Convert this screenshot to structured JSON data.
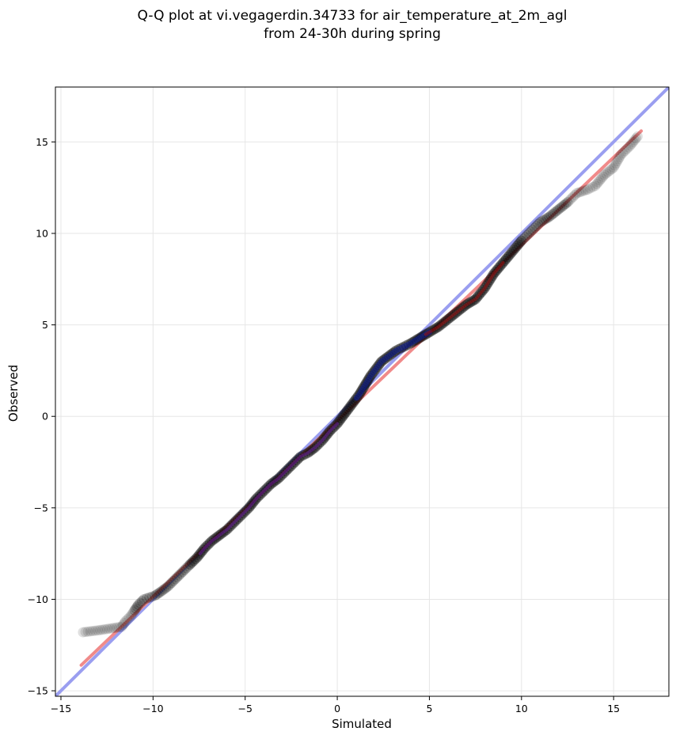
{
  "chart_data": {
    "type": "scatter",
    "title_lines": [
      "Q-Q plot at vi.vegagerdin.34733 for air_temperature_at_2m_agl",
      "from 24-30h during spring"
    ],
    "xlabel": "Simulated",
    "ylabel": "Observed",
    "xlim": [
      -15.3,
      18.0
    ],
    "ylim": [
      -15.3,
      18.0
    ],
    "xticks": [
      -15,
      -10,
      -5,
      0,
      5,
      10,
      15
    ],
    "yticks": [
      -15,
      -10,
      -5,
      0,
      5,
      10,
      15
    ],
    "tick_labels": {
      "x": [
        "−15",
        "−10",
        "−5",
        "0",
        "5",
        "10",
        "15"
      ],
      "y": [
        "−15",
        "−10",
        "−5",
        "0",
        "5",
        "10",
        "15"
      ]
    },
    "grid": true,
    "reference_line": {
      "from": [
        -15.3,
        -15.3
      ],
      "to": [
        18.0,
        18.0
      ],
      "color": "#9a9ef0"
    },
    "fit_line": {
      "from": [
        -13.9,
        -13.6
      ],
      "to": [
        16.5,
        15.6
      ],
      "color": "#f08a8a"
    },
    "quantile_points": [
      [
        -13.8,
        -11.8
      ],
      [
        -13.0,
        -11.7
      ],
      [
        -11.7,
        -11.5
      ],
      [
        -11.5,
        -11.2
      ],
      [
        -11.2,
        -10.9
      ],
      [
        -11.0,
        -10.6
      ],
      [
        -10.8,
        -10.3
      ],
      [
        -10.5,
        -10.0
      ],
      [
        -10.2,
        -9.9
      ],
      [
        -9.9,
        -9.8
      ],
      [
        -9.6,
        -9.6
      ],
      [
        -9.2,
        -9.3
      ],
      [
        -8.8,
        -8.9
      ],
      [
        -8.4,
        -8.5
      ],
      [
        -8.0,
        -8.1
      ],
      [
        -7.6,
        -7.7
      ],
      [
        -7.2,
        -7.2
      ],
      [
        -6.8,
        -6.8
      ],
      [
        -6.4,
        -6.5
      ],
      [
        -6.0,
        -6.2
      ],
      [
        -5.6,
        -5.8
      ],
      [
        -5.2,
        -5.4
      ],
      [
        -4.8,
        -5.0
      ],
      [
        -4.4,
        -4.5
      ],
      [
        -4.0,
        -4.1
      ],
      [
        -3.6,
        -3.7
      ],
      [
        -3.2,
        -3.4
      ],
      [
        -2.8,
        -3.0
      ],
      [
        -2.4,
        -2.6
      ],
      [
        -2.0,
        -2.2
      ],
      [
        -1.6,
        -2.0
      ],
      [
        -1.2,
        -1.7
      ],
      [
        -0.8,
        -1.3
      ],
      [
        -0.4,
        -0.8
      ],
      [
        0.0,
        -0.4
      ],
      [
        0.3,
        0.0
      ],
      [
        0.6,
        0.4
      ],
      [
        0.9,
        0.8
      ],
      [
        1.2,
        1.2
      ],
      [
        1.5,
        1.7
      ],
      [
        1.8,
        2.2
      ],
      [
        2.1,
        2.6
      ],
      [
        2.4,
        3.0
      ],
      [
        2.8,
        3.3
      ],
      [
        3.2,
        3.6
      ],
      [
        3.6,
        3.8
      ],
      [
        4.0,
        4.0
      ],
      [
        4.5,
        4.3
      ],
      [
        5.0,
        4.6
      ],
      [
        5.5,
        4.9
      ],
      [
        6.0,
        5.3
      ],
      [
        6.5,
        5.7
      ],
      [
        7.0,
        6.1
      ],
      [
        7.5,
        6.4
      ],
      [
        8.0,
        7.0
      ],
      [
        8.5,
        7.8
      ],
      [
        9.0,
        8.4
      ],
      [
        9.5,
        9.0
      ],
      [
        10.0,
        9.6
      ],
      [
        10.5,
        10.1
      ],
      [
        11.0,
        10.6
      ],
      [
        11.5,
        10.9
      ],
      [
        12.0,
        11.3
      ],
      [
        12.5,
        11.7
      ],
      [
        13.0,
        12.2
      ],
      [
        13.6,
        12.4
      ],
      [
        14.0,
        12.6
      ],
      [
        14.5,
        13.2
      ],
      [
        15.0,
        13.6
      ],
      [
        15.4,
        14.3
      ],
      [
        15.9,
        14.8
      ],
      [
        16.3,
        15.3
      ]
    ],
    "colors": {
      "points": "#000000",
      "dense_overlay_low": "#6a1b9a",
      "dense_overlay_mid": "#1020a0",
      "dense_overlay_high": "#a01010"
    }
  }
}
